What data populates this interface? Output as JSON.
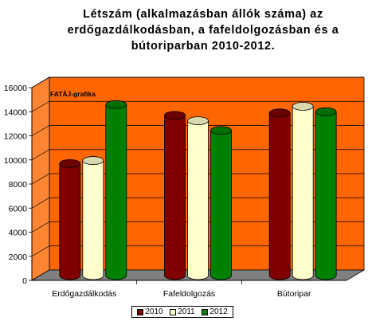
{
  "chart_data": {
    "type": "bar",
    "title_lines": [
      "Létszám (alkalmazásban állók száma) az",
      "erdőgazdálkodásban, a fafeldolgozásban és a",
      "bútoriparban 2010-2012."
    ],
    "watermark": "FATÁJ-grafika",
    "categories": [
      "Erdőgazdálkodás",
      "Fafeldolgozás",
      "Bútoripar"
    ],
    "series": [
      {
        "name": "2010",
        "values": [
          9300,
          13300,
          13500
        ],
        "color": "#800000"
      },
      {
        "name": "2011",
        "values": [
          9550,
          12850,
          14050
        ],
        "color": "#ffffcc"
      },
      {
        "name": "2012",
        "values": [
          14200,
          12050,
          13600
        ],
        "color": "#008000"
      }
    ],
    "ylim": [
      0,
      16000
    ],
    "y_ticks": [
      "0",
      "2000",
      "4000",
      "6000",
      "8000",
      "10000",
      "12000",
      "14000",
      "16000"
    ],
    "grid": true,
    "legend_position": "bottom",
    "wall_color": "#ff6600",
    "floor_color": "#808080"
  }
}
